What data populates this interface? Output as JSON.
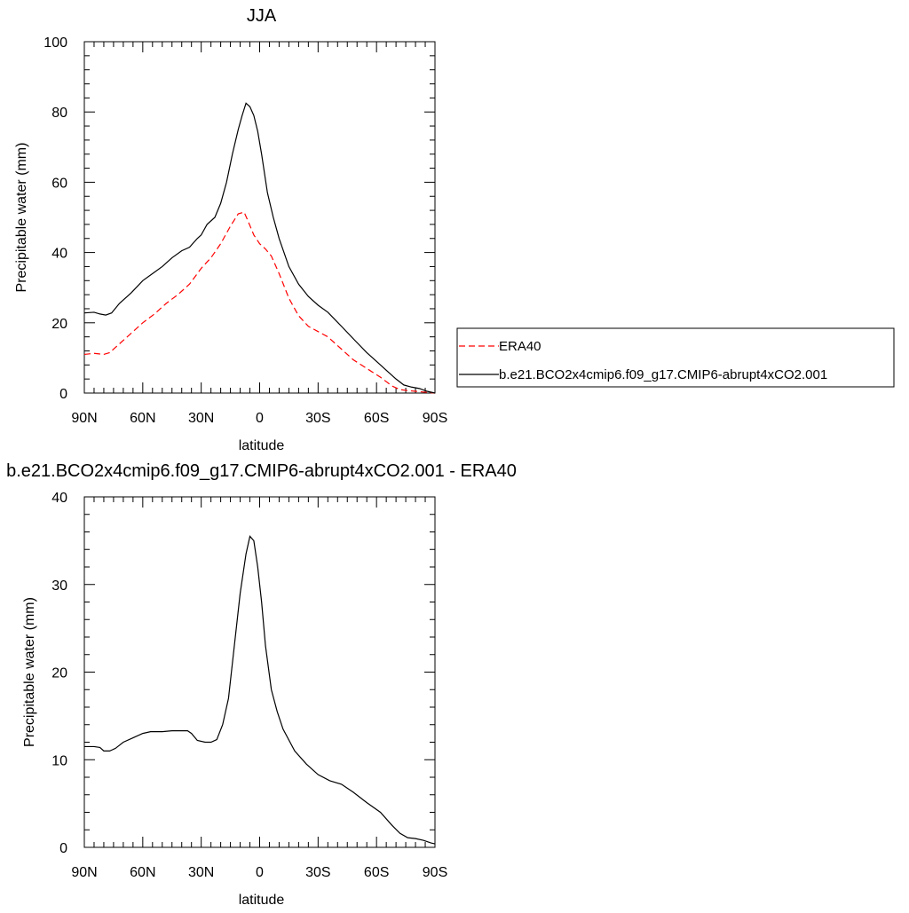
{
  "chart_data": [
    {
      "type": "line",
      "title": "JJA",
      "xlabel": "latitude",
      "ylabel": "Precipitable water (mm)",
      "xlim": [
        90,
        -90
      ],
      "ylim": [
        0,
        100
      ],
      "xticks": [
        {
          "value": 90,
          "label": "90N"
        },
        {
          "value": 60,
          "label": "60N"
        },
        {
          "value": 30,
          "label": "30N"
        },
        {
          "value": 0,
          "label": "0"
        },
        {
          "value": -30,
          "label": "30S"
        },
        {
          "value": -60,
          "label": "60S"
        },
        {
          "value": -90,
          "label": "90S"
        }
      ],
      "yticks": [
        {
          "value": 0,
          "label": "0"
        },
        {
          "value": 20,
          "label": "20"
        },
        {
          "value": 40,
          "label": "40"
        },
        {
          "value": 60,
          "label": "60"
        },
        {
          "value": 80,
          "label": "80"
        },
        {
          "value": 100,
          "label": "100"
        }
      ],
      "legend_position": "right",
      "series": [
        {
          "name": "ERA40",
          "color": "#ff0000",
          "dash": "dashed",
          "x": [
            90,
            85,
            80,
            77,
            72,
            66,
            60,
            54,
            48,
            42,
            36,
            30,
            25,
            20,
            15,
            11,
            8,
            6,
            3,
            0,
            -3,
            -6,
            -10,
            -15,
            -20,
            -25,
            -30,
            -35,
            -42,
            -48,
            -55,
            -62,
            -68,
            -72,
            -76,
            -80,
            -84,
            -88,
            -90
          ],
          "y": [
            11,
            11.3,
            11,
            11.5,
            14,
            17,
            20,
            22.5,
            25.5,
            28,
            31,
            35.5,
            38.5,
            42.5,
            47.5,
            51,
            51.5,
            49,
            45,
            42.5,
            41,
            39,
            34,
            27,
            22,
            19,
            17.5,
            16,
            12.5,
            9.5,
            7,
            4.5,
            2,
            1,
            0.7,
            0.5,
            0.3,
            0.1,
            0
          ]
        },
        {
          "name": "b.e21.BCO2x4cmip6.f09_g17.CMIP6-abrupt4xCO2.001",
          "color": "#000000",
          "dash": "solid",
          "x": [
            90,
            85,
            82,
            79,
            76,
            72,
            66,
            60,
            55,
            50,
            45,
            40,
            36,
            32,
            30,
            27,
            23,
            20,
            17,
            14,
            11,
            9,
            7,
            5,
            3,
            1,
            -1,
            -4,
            -7,
            -10,
            -15,
            -20,
            -25,
            -30,
            -35,
            -42,
            -48,
            -55,
            -60,
            -65,
            -70,
            -74,
            -78,
            -82,
            -86,
            -90
          ],
          "y": [
            22.8,
            23,
            22.5,
            22.2,
            22.8,
            25.5,
            28.5,
            32,
            34,
            36,
            38.5,
            40.5,
            41.5,
            44,
            45,
            48,
            50,
            54,
            60,
            68,
            75,
            79,
            82.5,
            81.5,
            79,
            74.5,
            68,
            57,
            50,
            44,
            36,
            31,
            27.5,
            25,
            23,
            19,
            15.5,
            11.5,
            9,
            6.5,
            4,
            2.3,
            1.7,
            1.3,
            0.5,
            0
          ]
        }
      ]
    },
    {
      "type": "line",
      "title": "b.e21.BCO2x4cmip6.f09_g17.CMIP6-abrupt4xCO2.001 - ERA40",
      "xlabel": "latitude",
      "ylabel": "Precipitable water (mm)",
      "xlim": [
        90,
        -90
      ],
      "ylim": [
        0,
        40
      ],
      "xticks": [
        {
          "value": 90,
          "label": "90N"
        },
        {
          "value": 60,
          "label": "60N"
        },
        {
          "value": 30,
          "label": "30N"
        },
        {
          "value": 0,
          "label": "0"
        },
        {
          "value": -30,
          "label": "30S"
        },
        {
          "value": -60,
          "label": "60S"
        },
        {
          "value": -90,
          "label": "90S"
        }
      ],
      "yticks": [
        {
          "value": 0,
          "label": "0"
        },
        {
          "value": 10,
          "label": "10"
        },
        {
          "value": 20,
          "label": "20"
        },
        {
          "value": 30,
          "label": "30"
        },
        {
          "value": 40,
          "label": "40"
        }
      ],
      "series": [
        {
          "color": "#000000",
          "dash": "solid",
          "x": [
            90,
            85,
            82,
            80,
            77,
            74,
            70,
            65,
            60,
            56,
            50,
            45,
            40,
            37,
            35,
            32,
            28,
            25,
            22,
            19,
            16,
            13,
            10,
            7,
            5,
            3,
            1,
            -1,
            -3,
            -6,
            -9,
            -12,
            -18,
            -24,
            -30,
            -36,
            -42,
            -48,
            -55,
            -62,
            -68,
            -72,
            -76,
            -80,
            -84,
            -88,
            -90
          ],
          "y": [
            11.5,
            11.5,
            11.4,
            11,
            11,
            11.3,
            12,
            12.5,
            13,
            13.2,
            13.2,
            13.3,
            13.3,
            13.3,
            13,
            12.2,
            12,
            12,
            12.3,
            14,
            17,
            23,
            29,
            33.5,
            35.5,
            35,
            32,
            28,
            23,
            18,
            15.5,
            13.5,
            11,
            9.5,
            8.3,
            7.6,
            7.2,
            6.3,
            5.1,
            4,
            2.5,
            1.6,
            1.1,
            1,
            0.8,
            0.5,
            0.4
          ]
        }
      ]
    }
  ]
}
